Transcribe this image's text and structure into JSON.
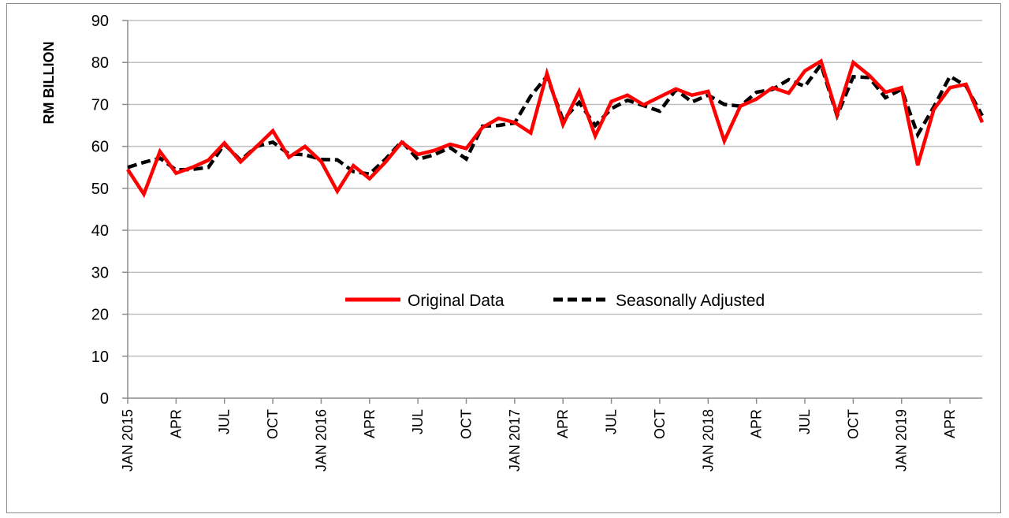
{
  "chart_data": {
    "type": "line",
    "title": "",
    "ylabel": "RM BILLION",
    "xlabel": "",
    "ylim": [
      0,
      90
    ],
    "yticks": [
      0,
      10,
      20,
      30,
      40,
      50,
      60,
      70,
      80,
      90
    ],
    "grid": true,
    "legend_position": "center",
    "xtick_labels": [
      {
        "index": 0,
        "label": "JAN 2015"
      },
      {
        "index": 3,
        "label": "APR"
      },
      {
        "index": 6,
        "label": "JUL"
      },
      {
        "index": 9,
        "label": "OCT"
      },
      {
        "index": 12,
        "label": "JAN 2016"
      },
      {
        "index": 15,
        "label": "APR"
      },
      {
        "index": 18,
        "label": "JUL"
      },
      {
        "index": 21,
        "label": "OCT"
      },
      {
        "index": 24,
        "label": "JAN 2017"
      },
      {
        "index": 27,
        "label": "APR"
      },
      {
        "index": 30,
        "label": "JUL"
      },
      {
        "index": 33,
        "label": "OCT"
      },
      {
        "index": 36,
        "label": "JAN 2018"
      },
      {
        "index": 39,
        "label": "APR"
      },
      {
        "index": 42,
        "label": "JUL"
      },
      {
        "index": 45,
        "label": "OCT"
      },
      {
        "index": 48,
        "label": "JAN 2019"
      },
      {
        "index": 51,
        "label": "APR"
      }
    ],
    "x": [
      "2015-01",
      "2015-02",
      "2015-03",
      "2015-04",
      "2015-05",
      "2015-06",
      "2015-07",
      "2015-08",
      "2015-09",
      "2015-10",
      "2015-11",
      "2015-12",
      "2016-01",
      "2016-02",
      "2016-03",
      "2016-04",
      "2016-05",
      "2016-06",
      "2016-07",
      "2016-08",
      "2016-09",
      "2016-10",
      "2016-11",
      "2016-12",
      "2017-01",
      "2017-02",
      "2017-03",
      "2017-04",
      "2017-05",
      "2017-06",
      "2017-07",
      "2017-08",
      "2017-09",
      "2017-10",
      "2017-11",
      "2017-12",
      "2018-01",
      "2018-02",
      "2018-03",
      "2018-04",
      "2018-05",
      "2018-06",
      "2018-07",
      "2018-08",
      "2018-09",
      "2018-10",
      "2018-11",
      "2018-12",
      "2019-01",
      "2019-02",
      "2019-03",
      "2019-04",
      "2019-05",
      "2019-06"
    ],
    "series": [
      {
        "name": "Original Data",
        "color": "#ff0000",
        "style": "solid",
        "values": [
          54.5,
          48.6,
          58.8,
          53.6,
          55.0,
          56.7,
          60.8,
          56.3,
          60.0,
          63.7,
          57.4,
          60.0,
          56.4,
          49.3,
          55.4,
          52.3,
          56.3,
          61.0,
          58.1,
          59.0,
          60.5,
          59.5,
          64.5,
          66.7,
          65.7,
          63.2,
          77.4,
          65.2,
          73.1,
          62.5,
          70.7,
          72.2,
          69.9,
          71.8,
          73.7,
          72.2,
          73.1,
          61.3,
          69.6,
          71.3,
          74.0,
          72.7,
          78.0,
          80.3,
          67.6,
          80.0,
          76.9,
          72.9,
          74.0,
          55.5,
          68.8,
          74.0,
          74.8,
          65.7
        ]
      },
      {
        "name": "Seasonally Adjusted",
        "color": "#000000",
        "style": "dashed",
        "values": [
          55.0,
          56.2,
          57.2,
          54.4,
          54.5,
          55.0,
          60.5,
          56.7,
          60.0,
          61.0,
          58.2,
          58.0,
          56.9,
          56.8,
          54.0,
          53.4,
          57.0,
          61.2,
          56.9,
          58.0,
          59.7,
          57.0,
          64.8,
          65.0,
          65.6,
          72.0,
          76.7,
          66.3,
          70.5,
          65.0,
          69.0,
          71.0,
          69.7,
          68.4,
          73.5,
          70.6,
          72.2,
          70.0,
          69.6,
          72.9,
          73.6,
          75.9,
          74.3,
          79.5,
          67.3,
          76.6,
          76.4,
          71.6,
          73.6,
          62.8,
          69.4,
          76.7,
          74.4,
          67.3
        ]
      }
    ]
  }
}
